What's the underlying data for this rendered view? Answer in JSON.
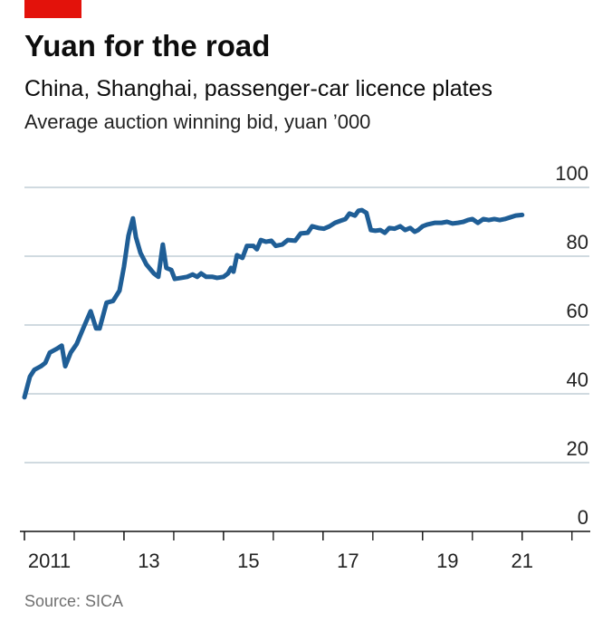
{
  "chart_data": {
    "type": "line",
    "title": "Yuan for the road",
    "subtitle": "China, Shanghai, passenger-car licence plates",
    "y_label": "Average auction winning bid, yuan ’000",
    "source": "Source: SICA",
    "x": [
      2011.0,
      2011.11,
      2011.2,
      2011.33,
      2011.42,
      2011.51,
      2011.64,
      2011.75,
      2011.82,
      2011.93,
      2012.05,
      2012.18,
      2012.33,
      2012.44,
      2012.51,
      2012.65,
      2012.78,
      2012.91,
      2013.0,
      2013.09,
      2013.18,
      2013.24,
      2013.33,
      2013.45,
      2013.6,
      2013.69,
      2013.78,
      2013.85,
      2013.95,
      2014.02,
      2014.15,
      2014.27,
      2014.38,
      2014.47,
      2014.55,
      2014.65,
      2014.78,
      2014.87,
      2015.0,
      2015.09,
      2015.15,
      2015.2,
      2015.27,
      2015.38,
      2015.47,
      2015.6,
      2015.67,
      2015.75,
      2015.85,
      2015.96,
      2016.05,
      2016.18,
      2016.29,
      2016.44,
      2016.55,
      2016.69,
      2016.78,
      2016.91,
      2017.02,
      2017.13,
      2017.24,
      2017.35,
      2017.45,
      2017.53,
      2017.64,
      2017.71,
      2017.78,
      2017.87,
      2017.96,
      2018.05,
      2018.15,
      2018.24,
      2018.33,
      2018.44,
      2018.55,
      2018.65,
      2018.75,
      2018.84,
      2018.91,
      2019.0,
      2019.09,
      2019.24,
      2019.38,
      2019.49,
      2019.6,
      2019.71,
      2019.82,
      2019.91,
      2020.0,
      2020.11,
      2020.22,
      2020.33,
      2020.44,
      2020.55,
      2020.65,
      2020.76,
      2020.87,
      2021.0
    ],
    "series": [
      {
        "name": "Average auction winning bid",
        "color": "#1f5e96",
        "values": [
          39,
          45,
          47,
          48,
          49,
          52,
          53,
          54,
          48,
          52,
          54.5,
          59,
          64,
          59,
          59,
          66.5,
          67,
          70,
          77,
          86,
          91,
          85.5,
          81,
          77.6,
          75,
          74,
          83.4,
          76.6,
          76,
          73.4,
          73.7,
          74,
          74.7,
          74,
          75,
          74,
          74,
          73.7,
          74,
          75,
          76.6,
          75.5,
          80.3,
          79.5,
          83,
          83,
          82,
          84.7,
          84.2,
          84.5,
          83,
          83.4,
          84.7,
          84.5,
          86.6,
          86.8,
          88.7,
          88.2,
          88,
          88.7,
          89.7,
          90.3,
          90.8,
          92.4,
          91.8,
          93.2,
          93.4,
          92.6,
          87.6,
          87.4,
          87.6,
          86.8,
          88.2,
          88,
          88.7,
          87.6,
          88.2,
          87.1,
          87.6,
          88.7,
          89.2,
          89.7,
          89.7,
          90,
          89.5,
          89.7,
          90,
          90.5,
          90.8,
          89.7,
          90.8,
          90.5,
          90.8,
          90.5,
          90.8,
          91.3,
          91.8,
          92
        ]
      }
    ],
    "xlim": [
      2011,
      2022.35
    ],
    "xticks": [
      {
        "value": 2011,
        "label": "2011"
      },
      {
        "value": 2013,
        "label": "13"
      },
      {
        "value": 2015,
        "label": "15"
      },
      {
        "value": 2017,
        "label": "17"
      },
      {
        "value": 2019,
        "label": "19"
      },
      {
        "value": 2021,
        "label": "21"
      }
    ],
    "ylim": [
      0,
      100
    ],
    "yticks": [
      0,
      20,
      40,
      60,
      80,
      100
    ],
    "grid": true
  }
}
